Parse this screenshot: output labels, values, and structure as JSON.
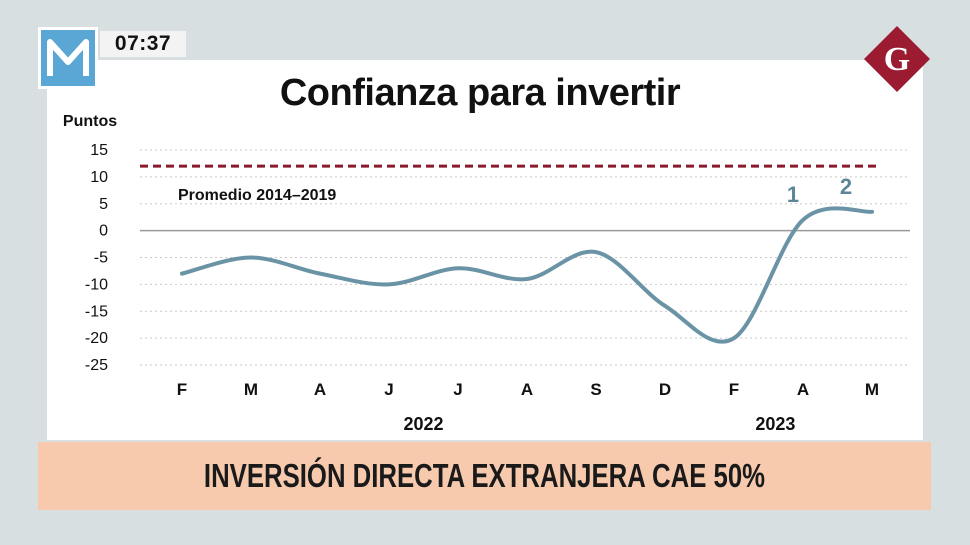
{
  "broadcast": {
    "channel_logo": "M",
    "time": "07:37",
    "network_logo": "G",
    "brand_colors": {
      "m_logo": "#5aa6d4",
      "g_logo": "#9b1b30"
    }
  },
  "banner": {
    "headline": "INVERSIÓN DIRECTA EXTRANJERA CAE 50%",
    "background": "#f7c9ad"
  },
  "chart_data": {
    "type": "line",
    "title": "Confianza para invertir",
    "ylabel": "Puntos",
    "xlabel": "",
    "ylim": [
      -25,
      15
    ],
    "yticks": [
      15,
      10,
      5,
      0,
      -5,
      -10,
      -15,
      -20,
      -25
    ],
    "grid": "horizontal dotted",
    "categories": [
      "F",
      "M",
      "A",
      "J",
      "J",
      "A",
      "S",
      "D",
      "F",
      "A",
      "M"
    ],
    "year_labels": [
      {
        "label": "2022",
        "center_category": 3.5
      },
      {
        "label": "2023",
        "center_category": 8.6
      }
    ],
    "series": [
      {
        "values": [
          -8,
          -5,
          -8,
          -10,
          -7,
          -9,
          -4,
          -14,
          -20,
          2,
          3.5
        ],
        "color": "#6a94a6"
      }
    ],
    "reference_line": {
      "label": "Promedio 2014–2019",
      "value": 12,
      "style": "dashed",
      "color": "#8b1a2c"
    },
    "annotations": [
      {
        "text": "1",
        "category_index": 9
      },
      {
        "text": "2",
        "category_index": 10
      }
    ],
    "annotation_color": "#5d8799"
  }
}
